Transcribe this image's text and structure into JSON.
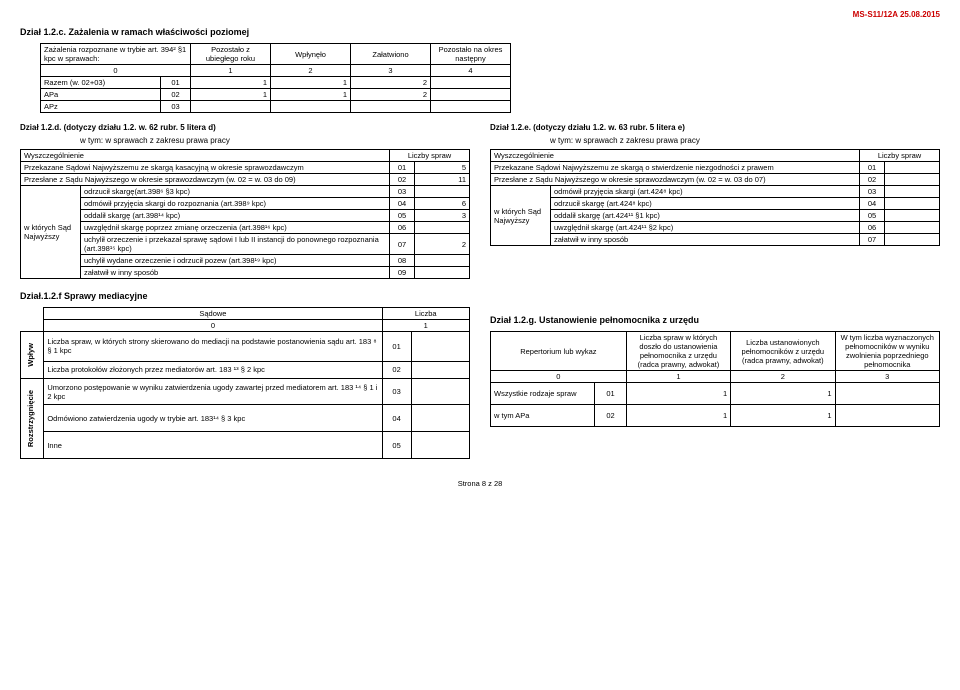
{
  "docId": "MS-S11/12A 25.08.2015",
  "s12c": {
    "title": "Dział 1.2.c. Zażalenia w ramach właściwości poziomej",
    "headers": [
      "Zażalenia rozpoznane w trybie art. 394² §1 kpc  w sprawach:",
      "Pozostało z ubiegłego roku",
      "Wpłynęło",
      "Załatwiono",
      "Pozostało na okres następny"
    ],
    "colNums": [
      "0",
      "1",
      "2",
      "3",
      "4"
    ],
    "rows": [
      {
        "label": "Razem (w. 02+03)",
        "code": "01",
        "v": [
          "1",
          "1",
          "2",
          ""
        ]
      },
      {
        "label": "APa",
        "code": "02",
        "v": [
          "1",
          "1",
          "2",
          ""
        ]
      },
      {
        "label": "APz",
        "code": "03",
        "v": [
          "",
          "",
          "",
          ""
        ]
      }
    ]
  },
  "s12d": {
    "title": "Dział 1.2.d. (dotyczy działu 1.2. w. 62 rubr. 5 litera d)",
    "sub": "w tym: w sprawach z zakresu prawa pracy",
    "colHeader1": "Wyszczególnienie",
    "colHeader2": "Liczby spraw",
    "row1": {
      "label": "Przekazane Sądowi Najwyższemu ze skargą kasacyjną w okresie sprawozdawczym",
      "code": "01",
      "val": "5"
    },
    "row2": {
      "label": "Przesłane z Sądu Najwyższego w okresie sprawozdawczym (w. 02 = w. 03 do 09)",
      "code": "02",
      "val": "11"
    },
    "groupLabel": "w których Sąd Najwyższy",
    "groupRows": [
      {
        "label": "odrzucił skargę(art.398⁶ §3 kpc)",
        "code": "03",
        "val": ""
      },
      {
        "label": "odmówił przyjęcia skargi do rozpoznania (art.398⁹ kpc)",
        "code": "04",
        "val": "6"
      },
      {
        "label": "oddalił skargę (art.398¹⁴ kpc)",
        "code": "05",
        "val": "3"
      },
      {
        "label": "uwzględnił skargę poprzez zmianę orzeczenia (art.398¹⁶ kpc)",
        "code": "06",
        "val": ""
      },
      {
        "label": "uchylił orzeczenie i przekazał sprawę sądowi I lub II instancji do ponownego rozpoznania (art.398¹⁵ kpc)",
        "code": "07",
        "val": "2"
      },
      {
        "label": "uchylił wydane orzeczenie i odrzucił pozew (art.398¹⁹ kpc)",
        "code": "08",
        "val": ""
      },
      {
        "label": "załatwił w inny sposób",
        "code": "09",
        "val": ""
      }
    ]
  },
  "s12e": {
    "title": "Dział 1.2.e. (dotyczy działu 1.2. w. 63 rubr. 5 litera e)",
    "sub": "w tym: w sprawach z zakresu prawa pracy",
    "colHeader1": "Wyszczególnienie",
    "colHeader2": "Liczby spraw",
    "row1": {
      "label": "Przekazane Sądowi Najwyższemu ze skargą o stwierdzenie niezgodności z prawem",
      "code": "01",
      "val": ""
    },
    "row2": {
      "label": "Przesłane z Sądu Najwyższego w okresie sprawozdawczym (w. 02 = w. 03 do 07)",
      "code": "02",
      "val": ""
    },
    "groupLabel": "w których Sąd Najwyższy",
    "groupRows": [
      {
        "label": "odmówił przyjęcia skargi (art.424⁸ kpc)",
        "code": "03",
        "val": ""
      },
      {
        "label": "odrzucił skargę (art.424⁸ kpc)",
        "code": "04",
        "val": ""
      },
      {
        "label": "oddalił skargę (art.424¹¹ §1 kpc)",
        "code": "05",
        "val": ""
      },
      {
        "label": "uwzględnił skargę (art.424¹¹ §2 kpc)",
        "code": "06",
        "val": ""
      },
      {
        "label": "załatwił w inny sposób",
        "code": "07",
        "val": ""
      }
    ]
  },
  "s12f": {
    "title": "Dział.1.2.f Sprawy mediacyjne",
    "h1": "Sądowe",
    "h2": "Liczba",
    "colNums": [
      "0",
      "1"
    ],
    "side1": "Wpływ",
    "side2": "Rozstrzygnięcie",
    "rows1": [
      {
        "label": "Liczba spraw, w których strony skierowano do mediacji na podstawie postanowienia sądu art. 183 ⁸ § 1 kpc",
        "code": "01",
        "val": ""
      },
      {
        "label": "Liczba protokołów złożonych przez mediatorów art. 183 ¹³ § 2 kpc",
        "code": "02",
        "val": ""
      }
    ],
    "rows2": [
      {
        "label": "Umorzono postępowanie w wyniku zatwierdzenia ugody zawartej przed mediatorem art. 183 ¹⁴ § 1 i 2 kpc",
        "code": "03",
        "val": ""
      },
      {
        "label": "Odmówiono  zatwierdzenia ugody w trybie art. 183¹⁴ § 3 kpc",
        "code": "04",
        "val": ""
      },
      {
        "label": "Inne",
        "code": "05",
        "val": ""
      }
    ]
  },
  "s12g": {
    "title": "Dział 1.2.g. Ustanowienie pełnomocnika z urzędu",
    "headers": [
      "Repertorium lub wykaz",
      "Liczba spraw  w których doszło do ustanowienia pełnomocnika z urzędu (radca prawny, adwokat)",
      "Liczba ustanowionych pełnomocników z urzędu (radca prawny, adwokat)",
      "W tym liczba wyznaczonych pełnomocników w wyniku zwolnienia poprzedniego pełnomocnika"
    ],
    "colNums": [
      "0",
      "1",
      "2",
      "3"
    ],
    "rows": [
      {
        "label": "Wszystkie rodzaje spraw",
        "code": "01",
        "v": [
          "1",
          "1",
          ""
        ]
      },
      {
        "label": "w tym APa",
        "code": "02",
        "v": [
          "1",
          "1",
          ""
        ]
      }
    ]
  },
  "footer": "Strona 8 z 28"
}
